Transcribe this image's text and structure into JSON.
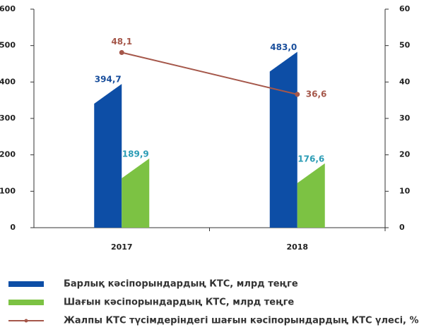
{
  "chart_data": {
    "type": "bar",
    "categories": [
      "2017",
      "2018"
    ],
    "series": [
      {
        "name": "Барлық кәсіпорындардың КТС, млрд теңге",
        "color": "#0d4ea6",
        "label_color": "#1a4f9c",
        "values": [
          394.7,
          483.0
        ],
        "value_labels": [
          "394,7",
          "483,0"
        ]
      },
      {
        "name": "Шағын кәсіпорындардың КТС, млрд теңге",
        "color": "#7cc243",
        "label_color": "#2b9cb5",
        "values": [
          189.9,
          176.6
        ],
        "value_labels": [
          "189,9",
          "176,6"
        ]
      },
      {
        "name": "Жалпы КТС түсімдеріндегі шағын кәсіпорындардың КТС үлесі, %",
        "type": "line",
        "axis": "y2",
        "color": "#a5574a",
        "label_color": "#a5574a",
        "values": [
          48.1,
          36.6
        ],
        "value_labels": [
          "48,1",
          "36,6"
        ]
      }
    ],
    "ylim": [
      0,
      600
    ],
    "yticks": [
      0,
      100,
      200,
      300,
      400,
      500,
      600
    ],
    "y2lim": [
      0,
      60
    ],
    "y2ticks": [
      0,
      10,
      20,
      30,
      40,
      50,
      60
    ]
  }
}
